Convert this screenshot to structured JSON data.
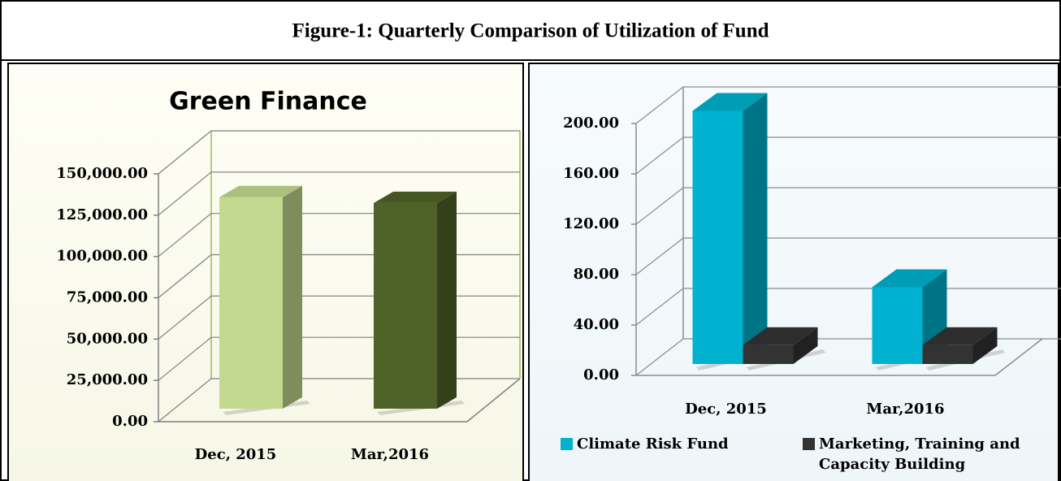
{
  "title": "Figure-1: Quarterly Comparison of Utilization of Fund",
  "chart_data": [
    {
      "type": "bar3d",
      "title": "Green Finance",
      "categories": [
        "Dec, 2015",
        "Mar,2016"
      ],
      "values": [
        128000,
        124500
      ],
      "colors": [
        "#c3d98f",
        "#4f6228"
      ],
      "ylim": [
        0,
        150000
      ],
      "yticks": [
        {
          "value": 0,
          "label": "0.00"
        },
        {
          "value": 25000,
          "label": "25,000.00"
        },
        {
          "value": 50000,
          "label": "50,000.00"
        },
        {
          "value": 75000,
          "label": "75,000.00"
        },
        {
          "value": 100000,
          "label": "100,000.00"
        },
        {
          "value": 125000,
          "label": "125,000.00"
        },
        {
          "value": 150000,
          "label": "150,000.00"
        }
      ],
      "grid": true
    },
    {
      "type": "bar3d",
      "categories": [
        "Dec, 2015",
        "Mar,2016"
      ],
      "series": [
        {
          "name": "Climate Risk Fund",
          "color": "#00b2cf",
          "values": [
            201,
            61
          ]
        },
        {
          "name": "Marketing, Training and Capacity Building",
          "color": "#333333",
          "values": [
            15,
            15
          ]
        }
      ],
      "ylim": [
        0,
        200
      ],
      "yticks": [
        {
          "value": 0,
          "label": "0.00"
        },
        {
          "value": 40,
          "label": "40.00"
        },
        {
          "value": 80,
          "label": "80.00"
        },
        {
          "value": 120,
          "label": "120.00"
        },
        {
          "value": 160,
          "label": "160.00"
        },
        {
          "value": 200,
          "label": "200.00"
        }
      ],
      "grid": true,
      "legend": "bottom"
    }
  ]
}
